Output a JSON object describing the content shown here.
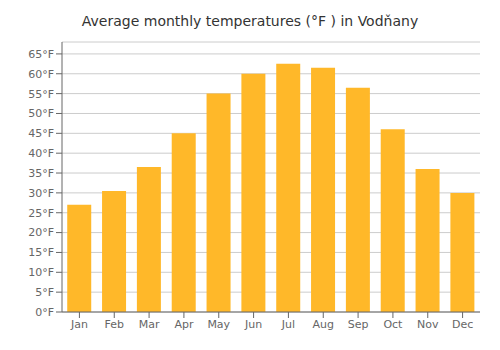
{
  "chart_data": {
    "type": "bar",
    "title": "Average monthly temperatures (°F ) in Vodňany",
    "categories": [
      "Jan",
      "Feb",
      "Mar",
      "Apr",
      "May",
      "Jun",
      "Jul",
      "Aug",
      "Sep",
      "Oct",
      "Nov",
      "Dec"
    ],
    "values": [
      27.0,
      30.5,
      36.5,
      45.0,
      55.0,
      60.0,
      62.5,
      61.5,
      56.5,
      46.0,
      36.0,
      30.0
    ],
    "color": "#FFB829",
    "ylim": [
      0,
      68
    ],
    "yticks": [
      {
        "value": 0,
        "label": "0°F"
      },
      {
        "value": 5,
        "label": "5°F"
      },
      {
        "value": 10,
        "label": "10°F"
      },
      {
        "value": 15,
        "label": "15°F"
      },
      {
        "value": 20,
        "label": "20°F"
      },
      {
        "value": 25,
        "label": "25°F"
      },
      {
        "value": 30,
        "label": "30°F"
      },
      {
        "value": 35,
        "label": "35°F"
      },
      {
        "value": 40,
        "label": "40°F"
      },
      {
        "value": 45,
        "label": "45°F"
      },
      {
        "value": 50,
        "label": "50°F"
      },
      {
        "value": 55,
        "label": "55°F"
      },
      {
        "value": 60,
        "label": "60°F"
      },
      {
        "value": 65,
        "label": "65°F"
      }
    ],
    "grid": true
  }
}
